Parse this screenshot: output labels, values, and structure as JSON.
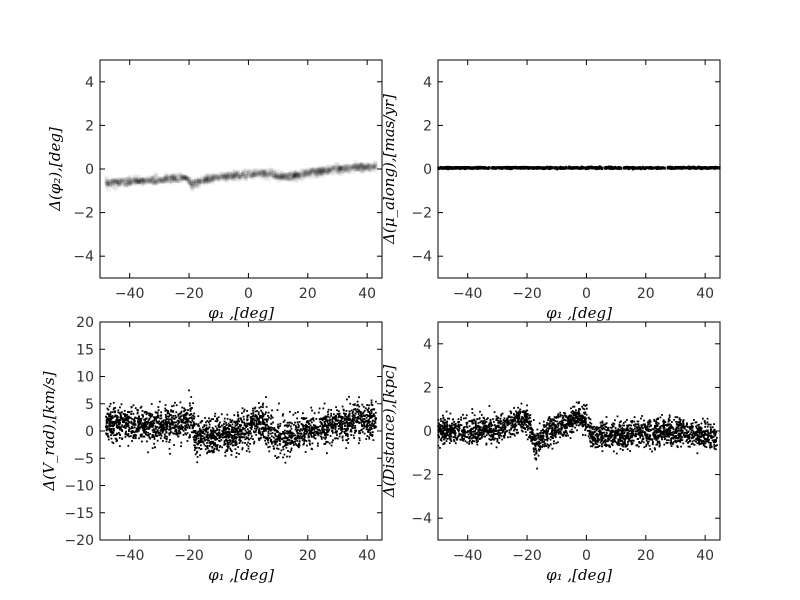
{
  "chart_data": [
    {
      "type": "scatter",
      "panel": "top-left",
      "xlabel": "φ₁ ,[deg]",
      "ylabel": "Δ(φ₂),[deg]",
      "xlim": [
        -50,
        45
      ],
      "ylim": [
        -5,
        5
      ],
      "xticks": [
        -40,
        -20,
        0,
        20,
        40
      ],
      "yticks": [
        -4,
        -2,
        0,
        2,
        4
      ],
      "grid": false,
      "style": "density",
      "series": [
        {
          "x": [
            -48,
            -42,
            -36,
            -30,
            -25,
            -21,
            -19,
            -17,
            -14,
            -10,
            -5,
            0,
            5,
            10,
            13,
            16,
            20,
            25,
            30,
            35,
            40,
            43
          ],
          "y": [
            -0.65,
            -0.6,
            -0.55,
            -0.5,
            -0.45,
            -0.4,
            -0.75,
            -0.6,
            -0.5,
            -0.4,
            -0.3,
            -0.25,
            -0.2,
            -0.3,
            -0.35,
            -0.3,
            -0.2,
            -0.1,
            0.0,
            0.05,
            0.1,
            0.1
          ]
        }
      ]
    },
    {
      "type": "scatter",
      "panel": "top-right",
      "xlabel": "φ₁ ,[deg]",
      "ylabel": "Δ(μ_along),[mas/yr]",
      "xlim": [
        -50,
        45
      ],
      "ylim": [
        -5,
        5
      ],
      "xticks": [
        -40,
        -20,
        0,
        20,
        40
      ],
      "yticks": [
        -4,
        -2,
        0,
        2,
        4
      ],
      "grid": false,
      "style": "dense",
      "series": [
        {
          "x": [
            -50,
            -40,
            -30,
            -20,
            -10,
            0,
            10,
            20,
            30,
            40,
            45
          ],
          "y": [
            0.05,
            0.05,
            0.05,
            0.05,
            0.05,
            0.05,
            0.05,
            0.05,
            0.05,
            0.05,
            0.05
          ]
        }
      ]
    },
    {
      "type": "scatter",
      "panel": "bottom-left",
      "xlabel": "φ₁ ,[deg]",
      "ylabel": "Δ(V_rad),[km/s]",
      "xlim": [
        -50,
        45
      ],
      "ylim": [
        -20,
        20
      ],
      "xticks": [
        -40,
        -20,
        0,
        20,
        40
      ],
      "yticks": [
        -20,
        -15,
        -10,
        -5,
        0,
        5,
        10,
        15,
        20
      ],
      "grid": false,
      "style": "dense",
      "spread": 1.6,
      "series": [
        {
          "x": [
            -48,
            -40,
            -30,
            -22,
            -19,
            -18,
            -15,
            -10,
            -5,
            0,
            3,
            6,
            10,
            15,
            20,
            25,
            30,
            35,
            40,
            43
          ],
          "y": [
            1.5,
            1.2,
            1.0,
            1.5,
            2.5,
            -1.5,
            -1.0,
            -1.0,
            -0.5,
            0.5,
            1.5,
            0.5,
            -1.0,
            -1.0,
            0.0,
            0.5,
            1.5,
            2.0,
            2.0,
            2.0
          ]
        }
      ]
    },
    {
      "type": "scatter",
      "panel": "bottom-right",
      "xlabel": "φ₁ ,[deg]",
      "ylabel": "Δ(Distance),[kpc]",
      "xlim": [
        -50,
        45
      ],
      "ylim": [
        -5,
        5
      ],
      "xticks": [
        -40,
        -20,
        0,
        20,
        40
      ],
      "yticks": [
        -4,
        -2,
        0,
        2,
        4
      ],
      "grid": false,
      "style": "dense",
      "spread": 0.3,
      "series": [
        {
          "x": [
            -50,
            -40,
            -30,
            -22,
            -20,
            -17,
            -15,
            -10,
            -5,
            -3,
            0,
            2,
            5,
            10,
            15,
            20,
            25,
            30,
            35,
            40,
            44
          ],
          "y": [
            0.0,
            0.0,
            0.1,
            0.5,
            0.6,
            -0.8,
            -0.3,
            0.1,
            0.4,
            0.6,
            0.5,
            -0.3,
            -0.2,
            -0.2,
            -0.1,
            -0.1,
            0.0,
            0.0,
            -0.1,
            -0.2,
            -0.3
          ]
        }
      ]
    }
  ]
}
